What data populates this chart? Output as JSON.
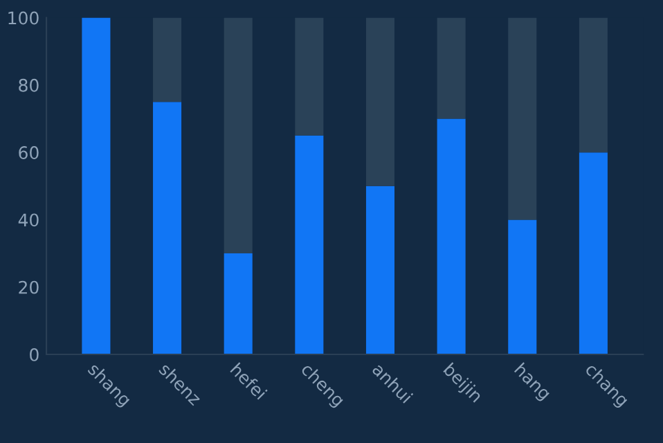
{
  "chart_data": {
    "type": "bar",
    "stacked": true,
    "categories": [
      "shang",
      "shenz",
      "hefei",
      "cheng",
      "anhui",
      "beijin",
      "hang",
      "chang"
    ],
    "series": [
      {
        "color": "#1176f5",
        "values": [
          100,
          75,
          30,
          65,
          50,
          70,
          40,
          60
        ]
      },
      {
        "color": "#2a4258",
        "values": [
          0,
          25,
          70,
          35,
          50,
          30,
          60,
          40
        ]
      }
    ],
    "ylim": [
      0,
      100
    ],
    "yticks": [
      0,
      20,
      40,
      60,
      80,
      100
    ],
    "grid": false,
    "legend": false
  }
}
